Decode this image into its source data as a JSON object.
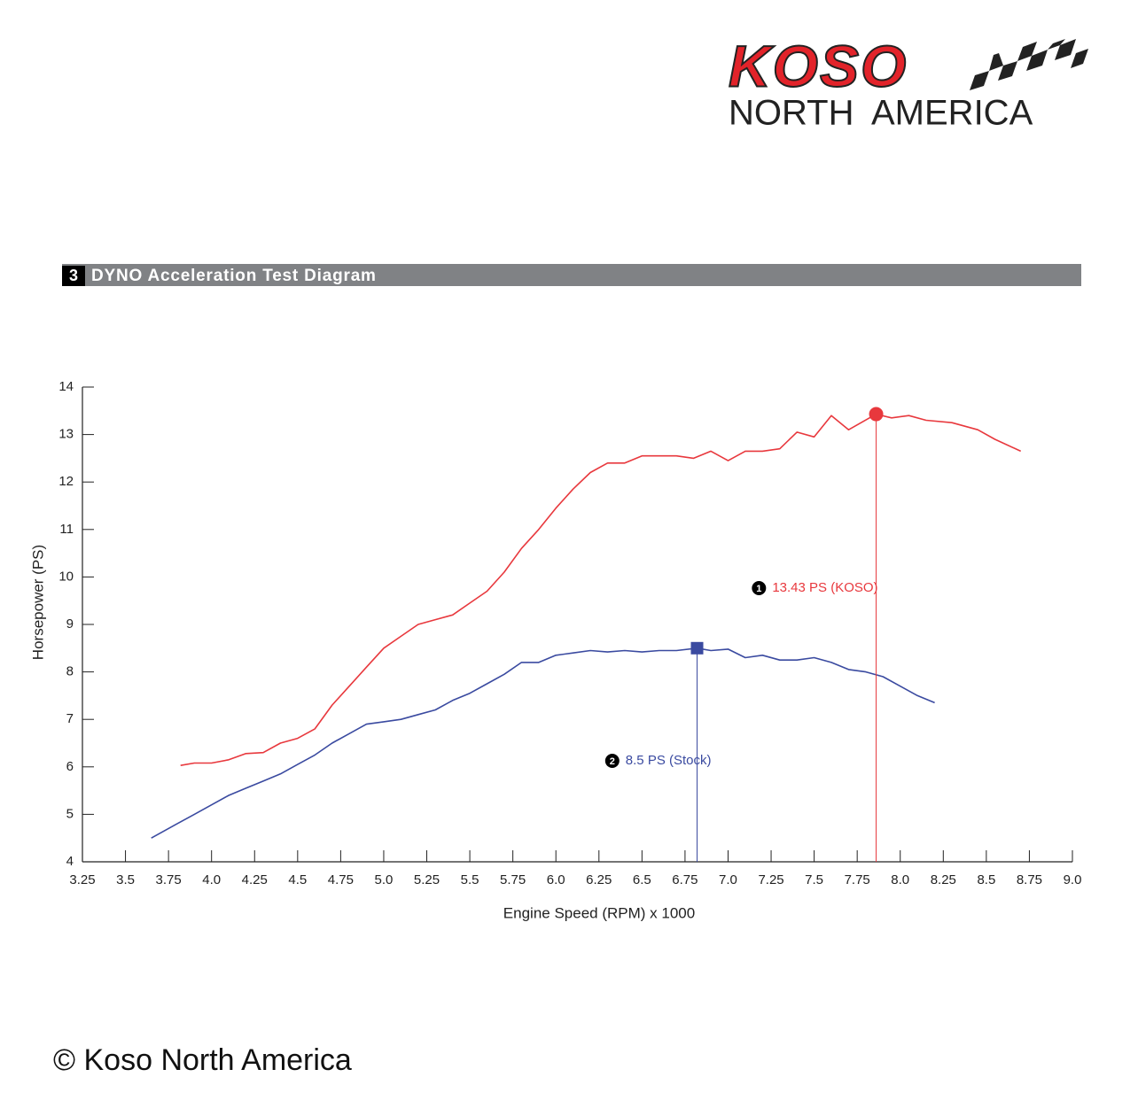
{
  "header": {
    "brand": "KOSO",
    "brand_sub_1": "NORTH",
    "brand_sub_2": "AMERICA"
  },
  "section": {
    "number": "3",
    "title": "DYNO Acceleration Test Diagram"
  },
  "chart_data": {
    "type": "line",
    "x_label": "Engine Speed (RPM) x 1000",
    "y_label": "Horsepower (PS)",
    "xlim": [
      3.25,
      9.0
    ],
    "ylim": [
      4,
      14
    ],
    "xticks": [
      3.25,
      3.5,
      3.75,
      {
        "value": 4,
        "label": "4.0"
      },
      4.25,
      4.5,
      4.75,
      {
        "value": 5,
        "label": "5.0"
      },
      5.25,
      5.5,
      5.75,
      {
        "value": 6,
        "label": "6.0"
      },
      6.25,
      6.5,
      6.75,
      {
        "value": 7,
        "label": "7.0"
      },
      7.25,
      7.5,
      7.75,
      {
        "value": 8,
        "label": "8.0"
      },
      8.25,
      8.5,
      8.75,
      {
        "value": 9,
        "label": "9.0"
      }
    ],
    "yticks": [
      4,
      5,
      6,
      7,
      8,
      9,
      10,
      11,
      12,
      13,
      14
    ],
    "series": [
      {
        "color": "#e8383d",
        "x": [
          3.82,
          3.9,
          4.0,
          4.1,
          4.2,
          4.3,
          4.4,
          4.5,
          4.6,
          4.7,
          4.8,
          4.9,
          5.0,
          5.1,
          5.2,
          5.3,
          5.4,
          5.5,
          5.6,
          5.7,
          5.8,
          5.9,
          6.0,
          6.1,
          6.2,
          6.3,
          6.4,
          6.5,
          6.6,
          6.7,
          6.8,
          6.9,
          7.0,
          7.1,
          7.2,
          7.3,
          7.4,
          7.5,
          7.6,
          7.7,
          7.86,
          7.95,
          8.05,
          8.15,
          8.3,
          8.45,
          8.55,
          8.7
        ],
        "values": [
          6.03,
          6.08,
          6.08,
          6.15,
          6.28,
          6.3,
          6.5,
          6.6,
          6.8,
          7.3,
          7.7,
          8.1,
          8.5,
          8.75,
          9.0,
          9.1,
          9.2,
          9.45,
          9.7,
          10.1,
          10.6,
          11.0,
          11.45,
          11.85,
          12.2,
          12.4,
          12.4,
          12.55,
          12.55,
          12.55,
          12.5,
          12.65,
          12.45,
          12.65,
          12.65,
          12.7,
          13.05,
          12.95,
          13.4,
          13.1,
          13.43,
          13.35,
          13.4,
          13.3,
          13.25,
          13.1,
          12.9,
          12.65
        ]
      },
      {
        "color": "#3a4aa0",
        "x": [
          3.65,
          3.8,
          3.9,
          4.0,
          4.1,
          4.2,
          4.3,
          4.4,
          4.5,
          4.6,
          4.7,
          4.8,
          4.9,
          5.0,
          5.1,
          5.2,
          5.3,
          5.4,
          5.5,
          5.6,
          5.7,
          5.8,
          5.9,
          6.0,
          6.1,
          6.2,
          6.3,
          6.4,
          6.5,
          6.6,
          6.7,
          6.82,
          6.9,
          7.0,
          7.1,
          7.2,
          7.3,
          7.4,
          7.5,
          7.6,
          7.7,
          7.8,
          7.9,
          8.0,
          8.1,
          8.2
        ],
        "values": [
          4.5,
          4.8,
          5.0,
          5.2,
          5.4,
          5.55,
          5.7,
          5.85,
          6.05,
          6.25,
          6.5,
          6.7,
          6.9,
          6.95,
          7.0,
          7.1,
          7.2,
          7.4,
          7.55,
          7.75,
          7.95,
          8.2,
          8.2,
          8.35,
          8.4,
          8.45,
          8.42,
          8.45,
          8.42,
          8.45,
          8.45,
          8.5,
          8.45,
          8.48,
          8.3,
          8.35,
          8.25,
          8.25,
          8.3,
          8.2,
          8.05,
          8.0,
          7.9,
          7.7,
          7.5,
          7.35
        ]
      }
    ],
    "annotations": [
      {
        "number": "1",
        "text": "13.43 PS (KOSO)",
        "x": 7.86,
        "y": 13.43,
        "color": "#e8383d",
        "marker": "circle"
      },
      {
        "number": "2",
        "text": "8.5 PS (Stock)",
        "x": 6.82,
        "y": 8.5,
        "color": "#3a4aa0",
        "marker": "square"
      }
    ]
  },
  "footer": {
    "copyright": "© Koso North America"
  }
}
